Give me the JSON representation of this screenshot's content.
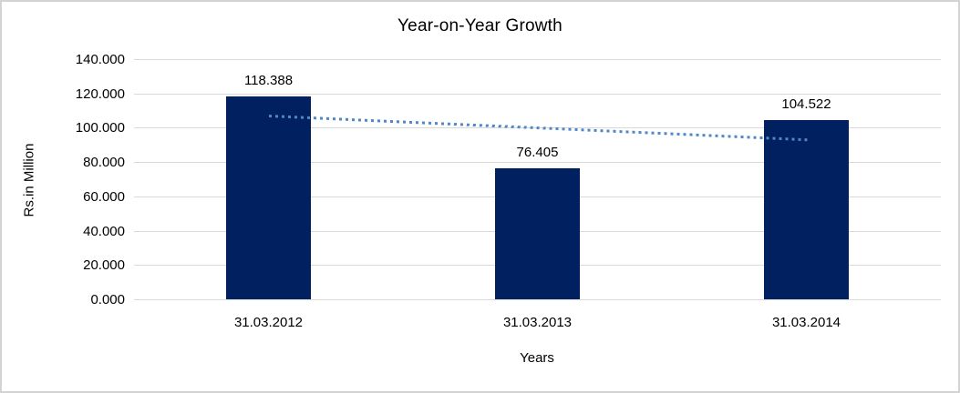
{
  "chart_data": {
    "type": "bar",
    "title": "Year-on-Year Growth",
    "xlabel": "Years",
    "ylabel": "Rs.in Million",
    "categories": [
      "31.03.2012",
      "31.03.2013",
      "31.03.2014"
    ],
    "values": [
      118.388,
      76.405,
      104.522
    ],
    "data_labels": [
      "118.388",
      "76.405",
      "104.522"
    ],
    "ylim": [
      0,
      140
    ],
    "ytick_step": 20,
    "yticks_top_to_bottom": [
      "140.000",
      "120.000",
      "100.000",
      "80.000",
      "60.000",
      "40.000",
      "20.000",
      "0.000"
    ],
    "grid": "horizontal",
    "legend": "none",
    "colors": {
      "bar_fill": "#002060",
      "gridline": "#d9d9d9",
      "text": "#000000",
      "frame_border": "#d3d3d3",
      "background": "#ffffff"
    },
    "trendline": {
      "type": "linear",
      "style": "dotted",
      "color": "#4f87c7",
      "start_value": 106.7,
      "end_value": 92.8,
      "span": "first bar center to last bar center"
    }
  }
}
